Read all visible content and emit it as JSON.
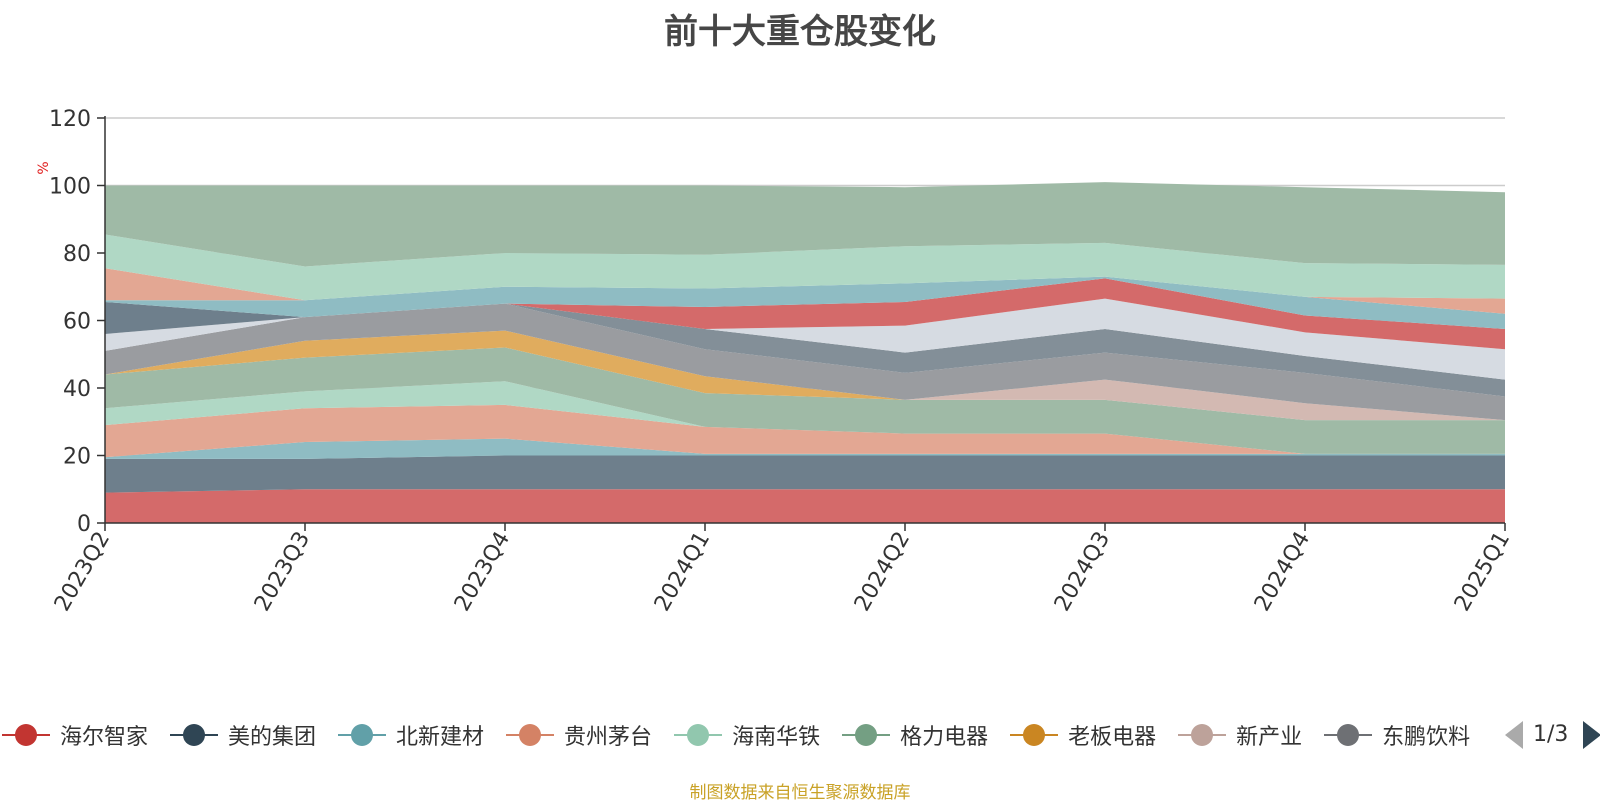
{
  "title": "前十大重仓股变化",
  "source": "制图数据来自恒生聚源数据库",
  "legend": {
    "page_indicator": "1/3"
  },
  "chart_data": {
    "type": "area",
    "stacked": true,
    "title": "前十大重仓股变化",
    "ylabel": "%",
    "ylim": [
      0,
      120
    ],
    "yticks": [
      0,
      20,
      40,
      60,
      80,
      100,
      120
    ],
    "grid": true,
    "legend_position": "bottom",
    "categories": [
      "2023Q2",
      "2023Q3",
      "2023Q4",
      "2024Q1",
      "2024Q2",
      "2024Q3",
      "2024Q4",
      "2025Q1"
    ],
    "series": [
      {
        "name": "海尔智家",
        "color": "#d46a6a",
        "values": [
          9,
          10,
          10,
          10,
          10,
          10,
          10,
          10
        ]
      },
      {
        "name": "美的集团",
        "color": "#6e7f8c",
        "values": [
          10,
          9,
          10,
          10,
          10,
          10,
          10,
          10
        ]
      },
      {
        "name": "北新建材",
        "color": "#8fbcc3",
        "values": [
          0.5,
          5,
          5,
          0.5,
          0.5,
          0.5,
          0.5,
          0.5
        ]
      },
      {
        "name": "贵州茅台",
        "color": "#e3a793",
        "values": [
          9.5,
          10,
          10,
          8,
          6,
          6,
          0,
          0
        ]
      },
      {
        "name": "海南华铁",
        "color": "#b0d8c5",
        "values": [
          5,
          5,
          7,
          0,
          0,
          0,
          0,
          0
        ]
      },
      {
        "name": "格力电器",
        "color": "#9fbaa6",
        "values": [
          10,
          10,
          10,
          10,
          10,
          10,
          10,
          10
        ]
      },
      {
        "name": "老板电器",
        "color": "#e0ac5e",
        "values": [
          0,
          5,
          5,
          5,
          0,
          0,
          0,
          0
        ]
      },
      {
        "name": "新产业",
        "color": "#d3b9b2",
        "values": [
          0,
          0,
          0,
          0,
          0,
          6,
          5,
          0
        ]
      },
      {
        "name": "东鹏饮料",
        "color": "#9a9ca0",
        "values": [
          7,
          7,
          8,
          8,
          8,
          8,
          9,
          7
        ]
      },
      {
        "name": "",
        "color": "#838f98",
        "values": [
          0,
          0,
          0,
          6,
          6,
          7,
          5,
          5
        ]
      },
      {
        "name": "",
        "color": "#d6dbe2",
        "values": [
          5,
          0,
          0,
          0,
          8,
          9,
          7,
          9
        ]
      },
      {
        "name": "",
        "color": "#6e7f8c",
        "values": [
          9.5,
          0,
          0,
          0,
          0,
          0,
          0,
          0
        ]
      },
      {
        "name": "",
        "color": "#d46a6a",
        "values": [
          0,
          0,
          0,
          6.5,
          7,
          6,
          5,
          6
        ]
      },
      {
        "name": "",
        "color": "#8fbcc3",
        "values": [
          0.5,
          5,
          5,
          5.5,
          5.5,
          0.5,
          5.5,
          4.5
        ]
      },
      {
        "name": "",
        "color": "#e3a793",
        "values": [
          9.5,
          0,
          0,
          0,
          0,
          0,
          0,
          4.5
        ]
      },
      {
        "name": "",
        "color": "#b0d8c5",
        "values": [
          10,
          10,
          10,
          10,
          11,
          10,
          10,
          10
        ]
      },
      {
        "name": "",
        "color": "#9fbaa6",
        "values": [
          14.5,
          24,
          20,
          20.5,
          17.5,
          18,
          22.5,
          21.5
        ]
      }
    ],
    "legend_entries": [
      {
        "label": "海尔智家",
        "color": "#c23531"
      },
      {
        "label": "美的集团",
        "color": "#2f4554"
      },
      {
        "label": "北新建材",
        "color": "#61a0a8"
      },
      {
        "label": "贵州茅台",
        "color": "#d48265"
      },
      {
        "label": "海南华铁",
        "color": "#91c7ae"
      },
      {
        "label": "格力电器",
        "color": "#749f83"
      },
      {
        "label": "老板电器",
        "color": "#ca8622"
      },
      {
        "label": "新产业",
        "color": "#bda29a"
      },
      {
        "label": "东鹏饮料",
        "color": "#6e7074"
      }
    ]
  }
}
